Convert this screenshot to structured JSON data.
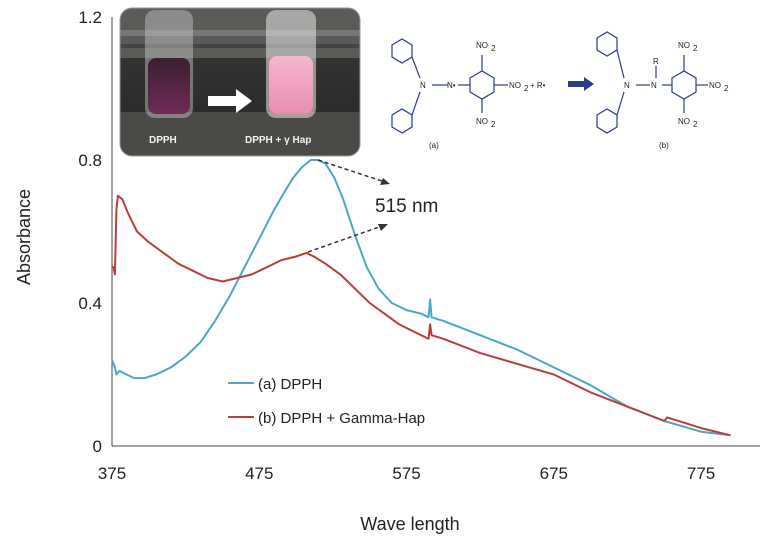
{
  "chart_data": {
    "type": "line",
    "xlabel": "Wave length",
    "ylabel": "Absorbance",
    "xlim": [
      375,
      815
    ],
    "ylim": [
      0,
      1.2
    ],
    "x_ticks": [
      375,
      475,
      575,
      675,
      775
    ],
    "x_tick_labels": [
      "375",
      "475",
      "575",
      "675",
      "775"
    ],
    "y_ticks": [
      0,
      0.4,
      0.8,
      1.2
    ],
    "y_tick_labels": [
      "0",
      "0.4",
      "0.8",
      "1.2"
    ],
    "grid": false,
    "legend_position": "lower-left inside",
    "series": [
      {
        "name": "(a) DPPH",
        "color": "#4aa8c7",
        "points": [
          [
            375,
            0.24
          ],
          [
            377,
            0.22
          ],
          [
            378,
            0.2
          ],
          [
            380,
            0.21
          ],
          [
            385,
            0.2
          ],
          [
            390,
            0.19
          ],
          [
            397,
            0.19
          ],
          [
            405,
            0.2
          ],
          [
            415,
            0.22
          ],
          [
            425,
            0.25
          ],
          [
            435,
            0.29
          ],
          [
            445,
            0.35
          ],
          [
            455,
            0.42
          ],
          [
            465,
            0.5
          ],
          [
            475,
            0.58
          ],
          [
            485,
            0.66
          ],
          [
            492,
            0.71
          ],
          [
            498,
            0.75
          ],
          [
            504,
            0.78
          ],
          [
            510,
            0.8
          ],
          [
            515,
            0.8
          ],
          [
            520,
            0.79
          ],
          [
            526,
            0.75
          ],
          [
            532,
            0.69
          ],
          [
            540,
            0.59
          ],
          [
            548,
            0.5
          ],
          [
            556,
            0.44
          ],
          [
            565,
            0.4
          ],
          [
            575,
            0.38
          ],
          [
            585,
            0.37
          ],
          [
            590,
            0.36
          ],
          [
            591,
            0.41
          ],
          [
            592,
            0.36
          ],
          [
            600,
            0.35
          ],
          [
            625,
            0.31
          ],
          [
            650,
            0.27
          ],
          [
            675,
            0.22
          ],
          [
            700,
            0.17
          ],
          [
            725,
            0.11
          ],
          [
            750,
            0.07
          ],
          [
            775,
            0.04
          ],
          [
            795,
            0.03
          ]
        ]
      },
      {
        "name": "(b) DPPH + Gamma-Hap",
        "color": "#b8403b",
        "points": [
          [
            375,
            0.5
          ],
          [
            376,
            0.5
          ],
          [
            377,
            0.48
          ],
          [
            378,
            0.66
          ],
          [
            379,
            0.7
          ],
          [
            382,
            0.69
          ],
          [
            386,
            0.65
          ],
          [
            392,
            0.6
          ],
          [
            400,
            0.57
          ],
          [
            410,
            0.54
          ],
          [
            420,
            0.51
          ],
          [
            430,
            0.49
          ],
          [
            440,
            0.47
          ],
          [
            450,
            0.46
          ],
          [
            460,
            0.47
          ],
          [
            470,
            0.48
          ],
          [
            480,
            0.5
          ],
          [
            490,
            0.52
          ],
          [
            500,
            0.53
          ],
          [
            507,
            0.54
          ],
          [
            512,
            0.53
          ],
          [
            520,
            0.51
          ],
          [
            530,
            0.48
          ],
          [
            540,
            0.44
          ],
          [
            550,
            0.4
          ],
          [
            560,
            0.37
          ],
          [
            570,
            0.34
          ],
          [
            580,
            0.32
          ],
          [
            590,
            0.3
          ],
          [
            591,
            0.34
          ],
          [
            592,
            0.31
          ],
          [
            600,
            0.3
          ],
          [
            625,
            0.26
          ],
          [
            650,
            0.23
          ],
          [
            675,
            0.2
          ],
          [
            700,
            0.15
          ],
          [
            725,
            0.11
          ],
          [
            750,
            0.07
          ],
          [
            752,
            0.08
          ],
          [
            775,
            0.05
          ],
          [
            795,
            0.03
          ]
        ]
      }
    ],
    "annotations": [
      {
        "text": "515 nm"
      }
    ]
  },
  "chemistry": {
    "sub_a_label": "(a)",
    "sub_b_label": "(b)",
    "no2": "NO",
    "no2_sub": "2",
    "n_label": "N",
    "n_radical": "N•",
    "r_radical": "+ R•",
    "r_label": "R"
  },
  "photo": {
    "left_label": "DPPH",
    "right_label": "DPPH + γ Hap"
  }
}
